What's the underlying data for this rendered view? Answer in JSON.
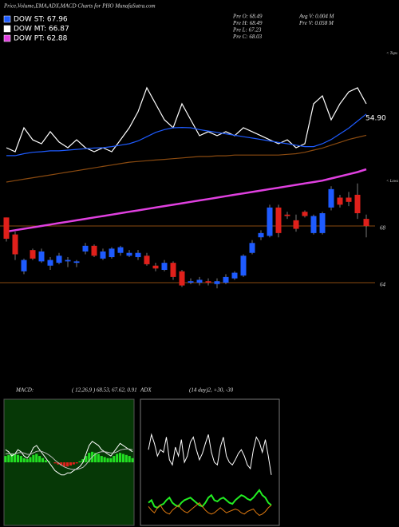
{
  "header": {
    "title": "Price,Volume,EMA,ADX,MACD Charts for PHO MunafaSutra.com",
    "legend": [
      {
        "label": "DOW ST: 67.96",
        "color": "#1e5bff"
      },
      {
        "label": "DOW MT: 66.87",
        "color": "#ffffff"
      },
      {
        "label": "DOW PT: 62.88",
        "color": "#e040e0"
      }
    ],
    "stats": [
      [
        "Pre O: 68.49",
        "Avg V: 0.004  M"
      ],
      [
        "Pre H: 68.49",
        "Pre V: 0.058  M"
      ],
      [
        "Pre L: 67.23"
      ],
      [
        "Pre C: 68.03"
      ]
    ]
  },
  "chart_data": [
    {
      "type": "candlestick",
      "up_color": "#1e5bff",
      "down_color": "#e0201b",
      "ylim": [
        63,
        80.5
      ],
      "yticks": [
        64,
        68
      ],
      "grid_color": "#8a4a10",
      "annotations": [
        "54.90",
        "< Tops",
        "< Lows"
      ],
      "ohlc": [
        [
          68.6,
          68.6,
          66.9,
          67.1
        ],
        [
          67.4,
          67.6,
          65.6,
          66.0
        ],
        [
          64.8,
          65.7,
          64.6,
          65.6
        ],
        [
          66.3,
          66.4,
          65.6,
          65.7
        ],
        [
          65.5,
          66.4,
          65.4,
          66.2
        ],
        [
          65.2,
          65.8,
          64.9,
          65.6
        ],
        [
          65.4,
          66.1,
          65.3,
          65.9
        ],
        [
          65.5,
          65.8,
          65.1,
          65.6
        ],
        [
          65.4,
          65.6,
          65.1,
          65.5
        ],
        [
          66.2,
          66.8,
          66.0,
          66.6
        ],
        [
          66.6,
          66.7,
          65.8,
          65.9
        ],
        [
          65.7,
          66.4,
          65.6,
          66.2
        ],
        [
          65.8,
          66.5,
          65.7,
          66.4
        ],
        [
          66.1,
          66.6,
          65.9,
          66.5
        ],
        [
          65.9,
          66.3,
          65.8,
          66.1
        ],
        [
          65.8,
          66.3,
          65.6,
          66.1
        ],
        [
          65.9,
          66.1,
          65.2,
          65.3
        ],
        [
          65.2,
          65.4,
          64.8,
          65.0
        ],
        [
          64.9,
          65.6,
          64.8,
          65.4
        ],
        [
          65.4,
          65.5,
          64.2,
          64.4
        ],
        [
          64.8,
          64.9,
          63.7,
          63.8
        ],
        [
          64.0,
          64.3,
          63.9,
          64.1
        ],
        [
          64.0,
          64.4,
          63.8,
          64.2
        ],
        [
          64.1,
          64.3,
          63.8,
          64.0
        ],
        [
          63.9,
          64.3,
          63.6,
          64.1
        ],
        [
          64.0,
          64.6,
          63.9,
          64.4
        ],
        [
          64.3,
          64.8,
          64.2,
          64.7
        ],
        [
          64.5,
          66.0,
          64.4,
          65.9
        ],
        [
          66.1,
          67.0,
          66.0,
          66.8
        ],
        [
          67.2,
          67.7,
          67.0,
          67.5
        ],
        [
          67.3,
          69.5,
          67.2,
          69.3
        ],
        [
          69.3,
          69.5,
          67.2,
          67.5
        ],
        [
          68.8,
          69.0,
          68.5,
          68.7
        ],
        [
          68.4,
          68.8,
          67.6,
          67.8
        ],
        [
          69.0,
          69.1,
          68.6,
          68.7
        ],
        [
          67.5,
          68.8,
          67.4,
          68.7
        ],
        [
          67.5,
          69.0,
          67.4,
          68.9
        ],
        [
          69.3,
          70.8,
          69.1,
          70.6
        ],
        [
          70.0,
          70.2,
          69.3,
          69.5
        ],
        [
          70.0,
          70.4,
          69.4,
          69.7
        ],
        [
          70.2,
          71.0,
          68.5,
          68.9
        ],
        [
          68.5,
          68.8,
          67.2,
          68.0
        ]
      ],
      "lines": [
        {
          "color": "#ffffff",
          "values": [
            73.52,
            73.24,
            74.93,
            74.08,
            73.8,
            74.65,
            73.92,
            73.52,
            74.08,
            73.52,
            73.24,
            73.52,
            73.24,
            74.08,
            74.93,
            76.06,
            77.75,
            76.62,
            75.49,
            74.93,
            76.62,
            75.49,
            74.37,
            74.65,
            74.37,
            74.65,
            74.37,
            74.93,
            74.65,
            74.37,
            74.08,
            73.8,
            74.08,
            73.52,
            73.8,
            76.62,
            77.18,
            75.49,
            76.62,
            77.46,
            77.75,
            76.62
          ]
        },
        {
          "color": "#1e5bff",
          "values": [
            72.96,
            72.96,
            73.1,
            73.2,
            73.24,
            73.3,
            73.3,
            73.35,
            73.4,
            73.45,
            73.5,
            73.52,
            73.6,
            73.7,
            73.8,
            74.0,
            74.3,
            74.6,
            74.8,
            74.93,
            74.95,
            74.93,
            74.8,
            74.7,
            74.6,
            74.5,
            74.4,
            74.3,
            74.2,
            74.1,
            74.0,
            73.9,
            73.8,
            73.7,
            73.6,
            73.6,
            73.8,
            74.1,
            74.5,
            74.9,
            75.4,
            75.9
          ]
        },
        {
          "color": "#8a4a10",
          "values": [
            71.1,
            71.2,
            71.3,
            71.4,
            71.5,
            71.6,
            71.7,
            71.8,
            71.9,
            72.0,
            72.1,
            72.2,
            72.3,
            72.4,
            72.5,
            72.55,
            72.6,
            72.65,
            72.7,
            72.75,
            72.8,
            72.85,
            72.9,
            72.9,
            72.95,
            72.95,
            73.0,
            73.0,
            73.0,
            73.0,
            73.0,
            73.0,
            73.05,
            73.1,
            73.2,
            73.35,
            73.5,
            73.7,
            73.9,
            74.1,
            74.25,
            74.4
          ]
        },
        {
          "color": "#e040e0",
          "values": [
            67.6,
            67.7,
            67.8,
            67.9,
            68.0,
            68.1,
            68.2,
            68.3,
            68.4,
            68.5,
            68.6,
            68.7,
            68.8,
            68.9,
            69.0,
            69.1,
            69.2,
            69.3,
            69.4,
            69.5,
            69.6,
            69.7,
            69.8,
            69.9,
            70.0,
            70.1,
            70.2,
            70.3,
            70.4,
            70.5,
            70.6,
            70.7,
            70.8,
            70.9,
            71.0,
            71.1,
            71.2,
            71.35,
            71.5,
            71.65,
            71.8,
            72.0
          ]
        }
      ]
    },
    {
      "type": "macd",
      "title": "MACD:",
      "subtitle": "( 12,26,9 ) 68.53, 67.62, 0.91",
      "ylim": [
        -3,
        3
      ],
      "background": "#063806",
      "pos_color": "#22dd22",
      "neg_color": "#e0201b",
      "histogram": [
        0.3,
        0.35,
        0.4,
        0.4,
        0.35,
        0.3,
        0.2,
        0.15,
        0.25,
        0.35,
        0.4,
        0.3,
        0.2,
        0.1,
        0.05,
        0.0,
        -0.05,
        -0.1,
        -0.15,
        -0.2,
        -0.2,
        -0.15,
        -0.1,
        -0.05,
        0.05,
        0.15,
        0.3,
        0.45,
        0.5,
        0.45,
        0.4,
        0.3,
        0.25,
        0.2,
        0.2,
        0.3,
        0.4,
        0.45,
        0.4,
        0.35,
        0.3,
        0.2
      ],
      "series": [
        {
          "color": "#ffffff",
          "values": [
            0.6,
            0.5,
            0.3,
            0.4,
            0.6,
            0.5,
            0.3,
            0.2,
            0.4,
            0.7,
            0.8,
            0.6,
            0.4,
            0.2,
            0.0,
            -0.2,
            -0.4,
            -0.5,
            -0.6,
            -0.6,
            -0.5,
            -0.5,
            -0.4,
            -0.3,
            -0.2,
            0.0,
            0.4,
            0.8,
            1.0,
            0.9,
            0.8,
            0.6,
            0.5,
            0.4,
            0.3,
            0.5,
            0.7,
            0.9,
            0.8,
            0.7,
            0.6,
            0.5
          ]
        },
        {
          "color": "#bbbbbb",
          "values": [
            0.4,
            0.42,
            0.4,
            0.4,
            0.45,
            0.47,
            0.44,
            0.38,
            0.38,
            0.45,
            0.52,
            0.54,
            0.5,
            0.44,
            0.35,
            0.24,
            0.1,
            -0.02,
            -0.13,
            -0.22,
            -0.28,
            -0.32,
            -0.34,
            -0.33,
            -0.3,
            -0.24,
            -0.1,
            0.08,
            0.26,
            0.39,
            0.47,
            0.5,
            0.5,
            0.48,
            0.44,
            0.45,
            0.5,
            0.58,
            0.62,
            0.64,
            0.63,
            0.6
          ]
        }
      ]
    },
    {
      "type": "line",
      "title": "ADX",
      "subtitle": "(14 day)2, +30, -30",
      "ylim": [
        0,
        100
      ],
      "background": "#000000",
      "series": [
        {
          "color": "#ffffff",
          "values": [
            60,
            72,
            65,
            55,
            60,
            58,
            70,
            52,
            48,
            62,
            55,
            68,
            50,
            55,
            66,
            70,
            60,
            52,
            57,
            65,
            72,
            58,
            50,
            48,
            62,
            70,
            55,
            50,
            48,
            52,
            57,
            60,
            55,
            48,
            45,
            60,
            70,
            66,
            58,
            68,
            55,
            40
          ]
        },
        {
          "color": "#22ee22",
          "values": [
            18,
            20,
            15,
            14,
            16,
            17,
            20,
            22,
            18,
            16,
            15,
            18,
            20,
            21,
            22,
            20,
            18,
            16,
            15,
            18,
            22,
            24,
            20,
            19,
            21,
            22,
            20,
            18,
            17,
            20,
            22,
            24,
            23,
            21,
            20,
            22,
            25,
            28,
            24,
            22,
            18,
            16
          ]
        },
        {
          "color": "#e07a10",
          "values": [
            15,
            12,
            10,
            14,
            16,
            12,
            10,
            9,
            12,
            14,
            16,
            13,
            11,
            10,
            12,
            14,
            16,
            18,
            15,
            12,
            10,
            9,
            10,
            12,
            14,
            12,
            10,
            11,
            12,
            13,
            12,
            10,
            9,
            11,
            12,
            13,
            10,
            8,
            9,
            11,
            14,
            16
          ]
        }
      ]
    }
  ]
}
